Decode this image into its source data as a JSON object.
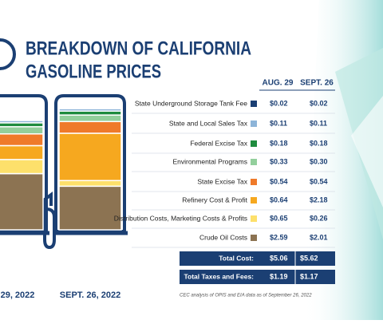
{
  "chart_data": {
    "type": "stacked-bar",
    "title_lines": [
      "BREAKDOWN OF CALIFORNIA",
      "GASOLINE PRICES"
    ],
    "categories": [
      "29, 2022",
      "SEPT. 26, 2022"
    ],
    "column_headers": [
      "AUG. 29",
      "SEPT. 26"
    ],
    "series": [
      {
        "name": "State Underground Storage Tank Fee",
        "color": "#1b3f73",
        "values": [
          0.02,
          0.02
        ],
        "value_labels": [
          "$0.02",
          "$0.02"
        ]
      },
      {
        "name": "State and Local Sales Tax",
        "color": "#8db4d8",
        "values": [
          0.11,
          0.11
        ],
        "value_labels": [
          "$0.11",
          "$0.11"
        ]
      },
      {
        "name": "Federal Excise Tax",
        "color": "#1e8b3e",
        "values": [
          0.18,
          0.18
        ],
        "value_labels": [
          "$0.18",
          "$0.18"
        ]
      },
      {
        "name": "Environmental Programs",
        "color": "#93cf9c",
        "values": [
          0.33,
          0.3
        ],
        "value_labels": [
          "$0.33",
          "$0.30"
        ]
      },
      {
        "name": "State Excise Tax",
        "color": "#ef7a2a",
        "values": [
          0.54,
          0.54
        ],
        "value_labels": [
          "$0.54",
          "$0.54"
        ]
      },
      {
        "name": "Refinery Cost & Profit",
        "color": "#f6a81f",
        "values": [
          0.64,
          2.18
        ],
        "value_labels": [
          "$0.64",
          "$2.18"
        ]
      },
      {
        "name": "Distribution Costs, Marketing Costs & Profits",
        "color": "#fde06b",
        "values": [
          0.65,
          0.26
        ],
        "value_labels": [
          "$0.65",
          "$0.26"
        ]
      },
      {
        "name": "Crude Oil Costs",
        "color": "#8c7352",
        "values": [
          2.59,
          2.01
        ],
        "value_labels": [
          "$2.59",
          "$2.01"
        ]
      }
    ],
    "totals": [
      {
        "name": "Total Cost:",
        "values": [
          5.06,
          5.62
        ],
        "value_labels": [
          "$5.06",
          "$5.62"
        ]
      },
      {
        "name": "Total Taxes and Fees:",
        "values": [
          1.19,
          1.17
        ],
        "value_labels": [
          "$1.19",
          "$1.17"
        ]
      }
    ],
    "note": "CEC analysis of OPIS and EIA data as of September 26, 2022"
  }
}
